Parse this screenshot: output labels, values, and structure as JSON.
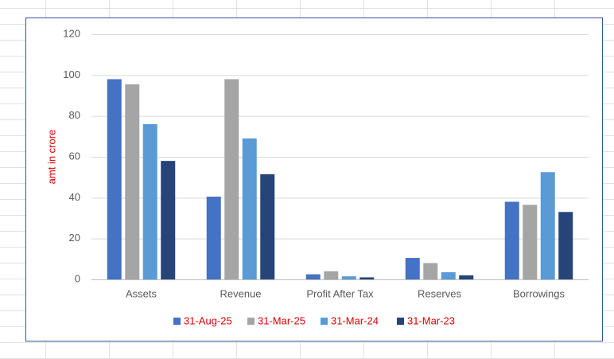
{
  "chart_data": {
    "type": "bar",
    "ylabel": "amt in crore",
    "categories": [
      "Assets",
      "Revenue",
      "Profit After Tax",
      "Reserves",
      "Borrowings"
    ],
    "series": [
      {
        "name": "31-Aug-25",
        "color": "#4472c4",
        "values": [
          98,
          40.5,
          2.5,
          10.5,
          38
        ]
      },
      {
        "name": "31-Mar-25",
        "color": "#a5a5a5",
        "values": [
          95.5,
          98,
          4,
          8,
          36.5
        ]
      },
      {
        "name": "31-Mar-24",
        "color": "#5b9bd5",
        "values": [
          76,
          69,
          1.5,
          3.5,
          52.5
        ]
      },
      {
        "name": "31-Mar-23",
        "color": "#264478",
        "values": [
          58,
          51.5,
          1,
          2,
          33
        ]
      }
    ],
    "ylim": [
      0,
      120
    ],
    "yticks": [
      0,
      20,
      40,
      60,
      80,
      100,
      120
    ],
    "grid": true,
    "legend": "bottom"
  }
}
